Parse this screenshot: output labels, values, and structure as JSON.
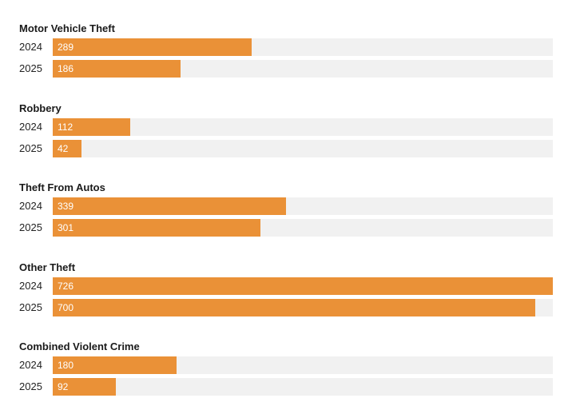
{
  "chart_data": {
    "type": "bar",
    "orientation": "horizontal",
    "xlim": [
      0,
      726
    ],
    "grid": false,
    "legend": "none",
    "colors": {
      "bar": "#ea9137",
      "track": "#f1f1f1"
    },
    "groups": [
      {
        "title": "Motor Vehicle Theft",
        "rows": [
          {
            "label": "2024",
            "value": 289
          },
          {
            "label": "2025",
            "value": 186
          }
        ]
      },
      {
        "title": "Robbery",
        "rows": [
          {
            "label": "2024",
            "value": 112
          },
          {
            "label": "2025",
            "value": 42
          }
        ]
      },
      {
        "title": "Theft From Autos",
        "rows": [
          {
            "label": "2024",
            "value": 339
          },
          {
            "label": "2025",
            "value": 301
          }
        ]
      },
      {
        "title": "Other Theft",
        "rows": [
          {
            "label": "2024",
            "value": 726
          },
          {
            "label": "2025",
            "value": 700
          }
        ]
      },
      {
        "title": "Combined Violent Crime",
        "rows": [
          {
            "label": "2024",
            "value": 180
          },
          {
            "label": "2025",
            "value": 92
          }
        ]
      }
    ]
  }
}
